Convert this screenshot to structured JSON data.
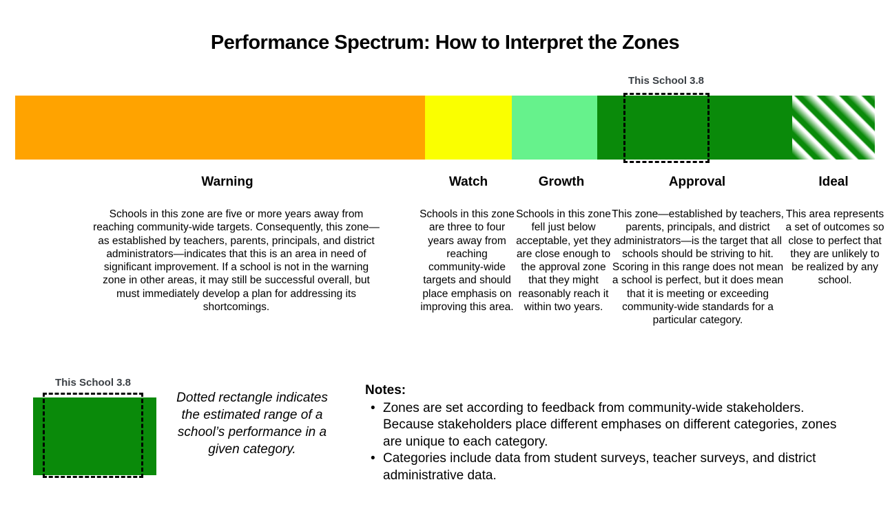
{
  "title": "Performance Spectrum: How to Interpret the Zones",
  "bar_marker": {
    "label": "This School 3.8",
    "zone": "Approval"
  },
  "zones": [
    {
      "name": "Warning",
      "color": "#FFA300",
      "description": "Schools in this zone are five or more years away from reaching community-wide targets. Consequently, this zone—as established by teachers, parents, principals, and district administrators—indicates that this is an area in need of significant improvement. If a school is not in the warning zone in other areas, it may still be successful overall, but must immediately develop a plan for addressing its shortcomings."
    },
    {
      "name": "Watch",
      "color": "#FAFF00",
      "description": "Schools in this zone are three to four years away from reaching community-wide targets and should place emphasis on improving this area."
    },
    {
      "name": "Growth",
      "color": "#66F28C",
      "description": "Schools in this zone fell just below acceptable, yet they are close enough to the approval zone that they might reasonably reach it within two years."
    },
    {
      "name": "Approval",
      "color": "#0A8A0A",
      "description": "This zone—established by teachers, parents, principals, and district administrators—is the target that all schools should be striving to hit. Scoring in this range does not mean a school is perfect, but it does mean that it is meeting or exceeding community-wide standards for a particular category."
    },
    {
      "name": "Ideal",
      "color": "#0A8A0A",
      "fill": "diagonal-green-white-stripes",
      "description": "This area represents a set of outcomes so close to perfect that they are unlikely to be realized by any school."
    }
  ],
  "legend": {
    "marker_label": "This School 3.8",
    "swatch_color": "#0A8A0A",
    "text": "Dotted rectangle indicates the estimated range of a school’s performance in a given category."
  },
  "notes": {
    "heading": "Notes:",
    "items": [
      "Zones are set according to feedback from community-wide stakeholders. Because stakeholders place different emphases on different categories, zones are unique to each category.",
      "Categories include data from student surveys, teacher surveys, and district administrative data."
    ]
  }
}
